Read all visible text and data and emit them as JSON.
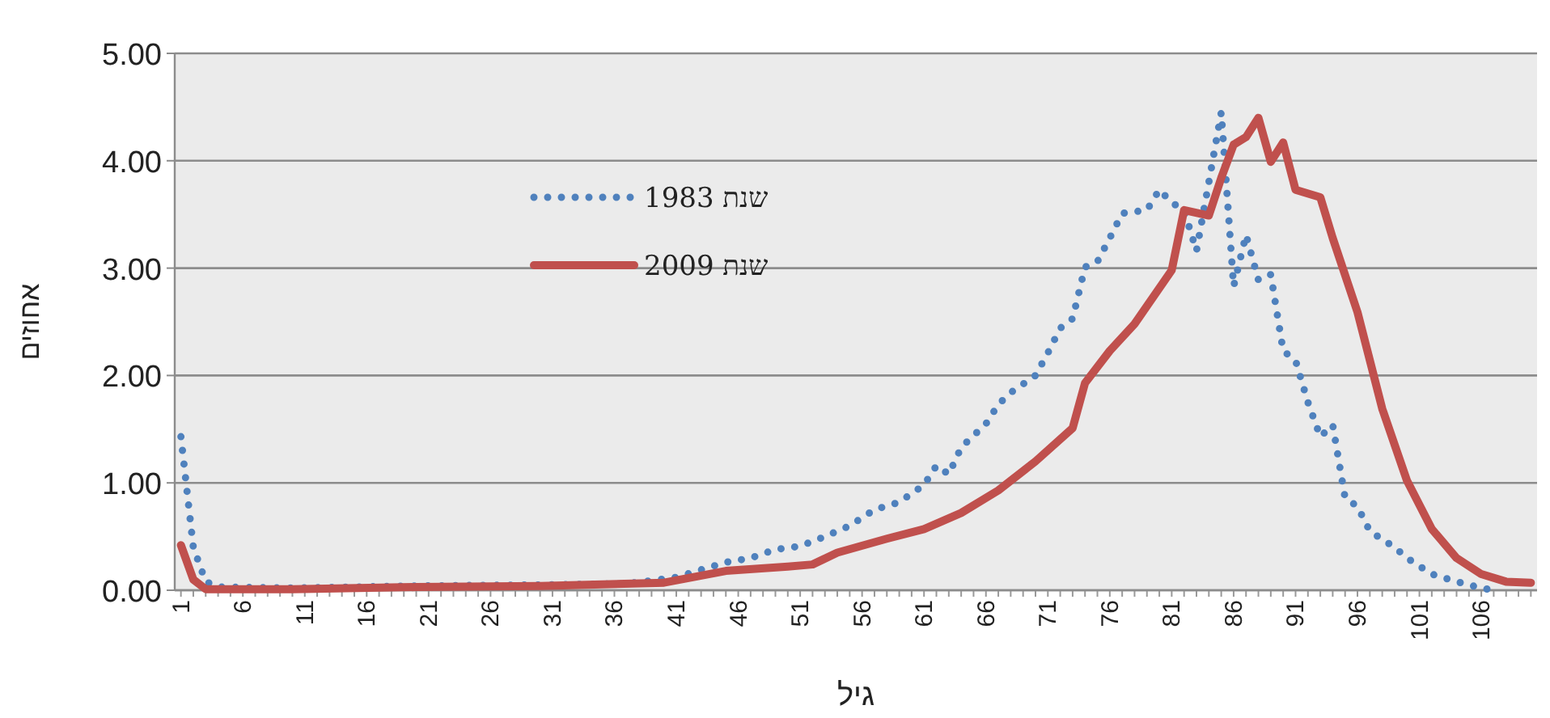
{
  "chart_data": {
    "type": "line",
    "xlabel": "גיל",
    "ylabel": "אחוזים",
    "xlim": [
      0.5,
      110.5
    ],
    "ylim": [
      0,
      5
    ],
    "xticks": [
      1,
      6,
      11,
      16,
      21,
      26,
      31,
      36,
      41,
      46,
      51,
      56,
      61,
      66,
      71,
      76,
      81,
      86,
      91,
      96,
      101,
      106
    ],
    "yticks": [
      {
        "value": 0,
        "label": "0.00"
      },
      {
        "value": 1,
        "label": "1.00"
      },
      {
        "value": 2,
        "label": "2.00"
      },
      {
        "value": 3,
        "label": "3.00"
      },
      {
        "value": 4,
        "label": "4.00"
      },
      {
        "value": 5,
        "label": "5.00"
      }
    ],
    "grid": "y",
    "legend": "top left",
    "marker": "none",
    "series": [
      {
        "name": "שנת 1983",
        "color": "#4f81bd",
        "line_style": "dotted",
        "x": [
          1,
          2,
          3,
          4,
          10,
          20,
          30,
          37,
          41,
          45,
          47,
          49,
          51,
          53,
          55,
          57,
          59,
          61,
          62,
          63,
          64,
          66,
          67,
          68,
          70,
          71,
          72,
          73,
          74,
          75,
          76,
          77,
          79,
          80,
          81,
          82,
          83,
          84,
          85,
          86,
          87,
          88,
          89,
          90,
          91,
          92,
          93,
          94,
          95,
          96,
          97,
          99,
          100,
          102,
          104,
          106,
          107
        ],
        "values": [
          1.43,
          0.4,
          0.08,
          0.03,
          0.02,
          0.04,
          0.05,
          0.06,
          0.12,
          0.26,
          0.3,
          0.38,
          0.41,
          0.5,
          0.6,
          0.75,
          0.82,
          0.98,
          1.16,
          1.08,
          1.33,
          1.55,
          1.73,
          1.84,
          2.0,
          2.21,
          2.44,
          2.53,
          3.01,
          3.06,
          3.28,
          3.51,
          3.54,
          3.73,
          3.61,
          3.54,
          3.16,
          3.8,
          4.45,
          2.83,
          3.31,
          2.89,
          2.94,
          2.23,
          2.14,
          1.75,
          1.43,
          1.54,
          0.86,
          0.78,
          0.55,
          0.4,
          0.3,
          0.15,
          0.08,
          0.02,
          0.0
        ]
      },
      {
        "name": "שנת 2009",
        "color": "#c0504d",
        "line_style": "solid",
        "x": [
          1,
          2,
          3,
          10,
          20,
          30,
          40,
          45,
          50,
          52,
          54,
          58,
          61,
          64,
          67,
          70,
          73,
          74,
          76,
          78,
          81,
          82,
          84,
          85,
          86,
          87,
          88,
          89,
          90,
          91,
          93,
          94,
          96,
          98,
          100,
          102,
          104,
          106,
          108,
          110
        ],
        "values": [
          0.42,
          0.1,
          0.01,
          0.01,
          0.03,
          0.04,
          0.07,
          0.18,
          0.22,
          0.24,
          0.35,
          0.48,
          0.57,
          0.72,
          0.93,
          1.2,
          1.51,
          1.93,
          2.23,
          2.48,
          2.98,
          3.54,
          3.49,
          3.84,
          4.15,
          4.22,
          4.4,
          3.99,
          4.17,
          3.73,
          3.66,
          3.28,
          2.59,
          1.69,
          1.02,
          0.57,
          0.3,
          0.15,
          0.08,
          0.07
        ]
      }
    ]
  }
}
